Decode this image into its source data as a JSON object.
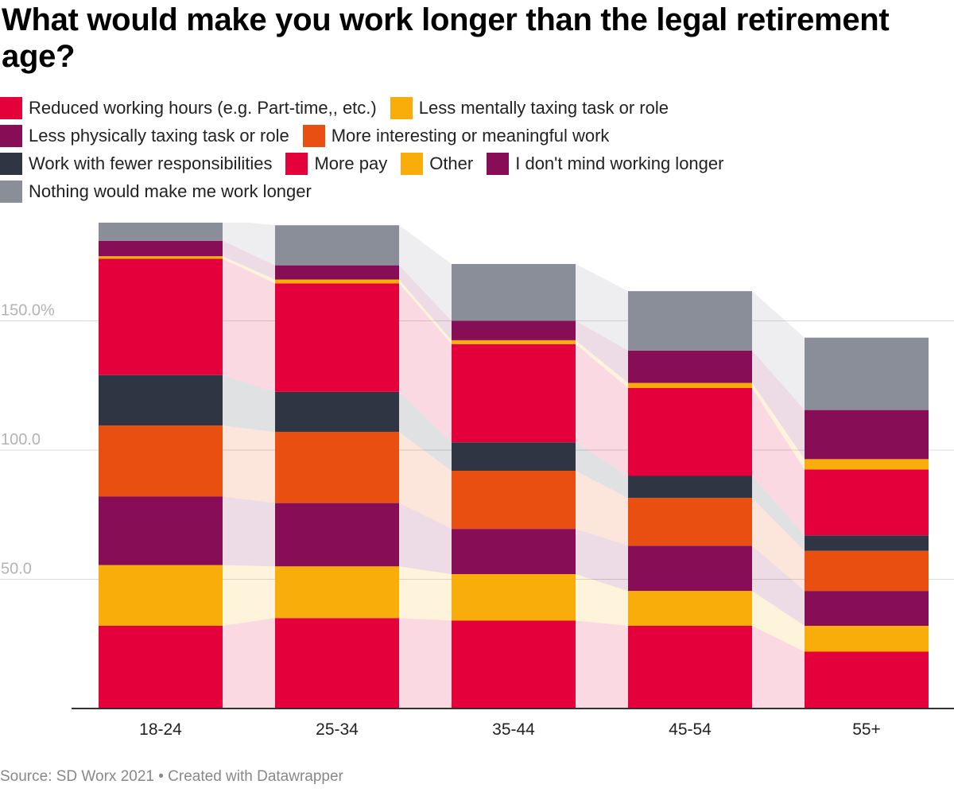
{
  "title": "What would make you work longer than the legal retirement age?",
  "source": "Source: SD Worx 2021 • Created with Datawrapper",
  "chart_data": {
    "type": "bar",
    "stacked": true,
    "categories": [
      "18-24",
      "25-34",
      "35-44",
      "45-54",
      "55+"
    ],
    "ylim": [
      0,
      188
    ],
    "yticks": [
      {
        "value": 50,
        "label": "50.0"
      },
      {
        "value": 100,
        "label": "100.0"
      },
      {
        "value": 150,
        "label": "150.0%"
      }
    ],
    "grid": true,
    "series": [
      {
        "name": "Reduced working hours (e.g. Part-time,, etc.)",
        "color": "#e4003a",
        "values": [
          32,
          35,
          34,
          32,
          22
        ]
      },
      {
        "name": "Less mentally taxing task or role",
        "color": "#f8ad0b",
        "values": [
          23.5,
          20,
          18,
          13.5,
          10
        ]
      },
      {
        "name": "Less physically taxing task or role",
        "color": "#870d56",
        "values": [
          26.5,
          24.5,
          17.5,
          17.5,
          13.5
        ]
      },
      {
        "name": "More interesting or meaningful work",
        "color": "#e84f10",
        "values": [
          27.5,
          27.5,
          22.5,
          18.5,
          15.5
        ]
      },
      {
        "name": "Work with fewer responsibilities",
        "color": "#2f3542",
        "values": [
          19.5,
          15.5,
          11,
          8.5,
          6
        ]
      },
      {
        "name": "More pay",
        "color": "#e4003a",
        "values": [
          45,
          42,
          38,
          34,
          25.5
        ]
      },
      {
        "name": "Other",
        "color": "#f8ad0b",
        "values": [
          1,
          1.5,
          1.5,
          2,
          4
        ]
      },
      {
        "name": "I don't mind working longer",
        "color": "#870d56",
        "values": [
          6,
          5.5,
          7.5,
          12.5,
          19
        ]
      },
      {
        "name": "Nothing would make me work longer",
        "color": "#8a8e99",
        "values": [
          8,
          15.5,
          22,
          23,
          28
        ]
      }
    ]
  }
}
